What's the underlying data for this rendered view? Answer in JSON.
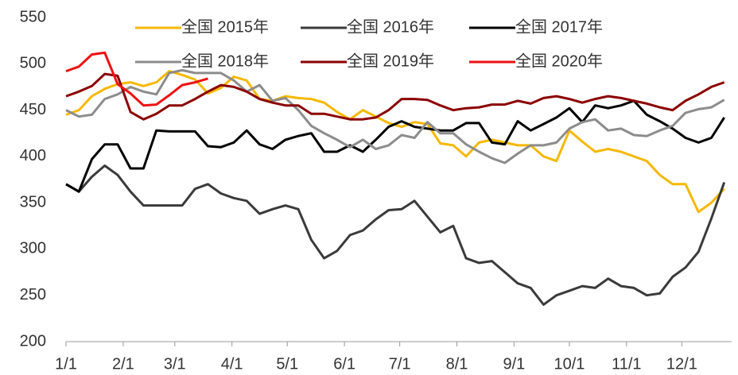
{
  "chart_data": {
    "type": "line",
    "x": [
      0,
      7,
      14,
      21,
      28,
      35,
      42,
      49,
      56,
      63,
      70,
      77,
      84,
      91,
      98,
      105,
      112,
      119,
      126,
      133,
      140,
      147,
      154,
      161,
      168,
      175,
      182,
      189,
      196,
      203,
      210,
      217,
      224,
      231,
      238,
      245,
      252,
      259,
      266,
      273,
      280,
      287,
      294,
      301,
      308,
      315,
      322,
      329,
      336,
      343,
      350,
      357
    ],
    "xlim": [
      0,
      361
    ],
    "xticks": [
      {
        "value": 0,
        "label": "1/1"
      },
      {
        "value": 31,
        "label": "2/1"
      },
      {
        "value": 59,
        "label": "3/1"
      },
      {
        "value": 90,
        "label": "4/1"
      },
      {
        "value": 120,
        "label": "5/1"
      },
      {
        "value": 151,
        "label": "6/1"
      },
      {
        "value": 181,
        "label": "7/1"
      },
      {
        "value": 212,
        "label": "8/1"
      },
      {
        "value": 243,
        "label": "9/1"
      },
      {
        "value": 273,
        "label": "10/1"
      },
      {
        "value": 304,
        "label": "11/1"
      },
      {
        "value": 334,
        "label": "12/1"
      }
    ],
    "ylim": [
      200,
      550
    ],
    "yticks": [
      200,
      250,
      300,
      350,
      400,
      450,
      500,
      550
    ],
    "legend": "top",
    "series": [
      {
        "name": "全国 2015年",
        "color": "#f5b800",
        "values": [
          445,
          450,
          465,
          473,
          478,
          480,
          476,
          480,
          492,
          488,
          483,
          468,
          474,
          486,
          482,
          462,
          460,
          465,
          463,
          462,
          458,
          448,
          440,
          450,
          443,
          436,
          432,
          437,
          435,
          414,
          412,
          400,
          415,
          418,
          415,
          412,
          412,
          400,
          395,
          428,
          416,
          405,
          408,
          405,
          400,
          395,
          380,
          370,
          370,
          340,
          350,
          365
        ]
      },
      {
        "name": "全国 2016年",
        "color": "#3a3a3a",
        "values": [
          370,
          362,
          378,
          390,
          380,
          362,
          347,
          347,
          347,
          347,
          365,
          370,
          360,
          355,
          352,
          338,
          343,
          347,
          343,
          310,
          290,
          298,
          315,
          320,
          332,
          342,
          343,
          352,
          335,
          318,
          325,
          290,
          285,
          287,
          275,
          263,
          258,
          240,
          250,
          255,
          260,
          258,
          268,
          260,
          258,
          250,
          252,
          270,
          280,
          297,
          333,
          372
        ]
      },
      {
        "name": "全国 2017年",
        "color": "#000000",
        "values": [
          370,
          362,
          397,
          413,
          413,
          387,
          387,
          428,
          427,
          427,
          427,
          411,
          410,
          415,
          428,
          413,
          408,
          418,
          422,
          425,
          405,
          405,
          412,
          405,
          418,
          432,
          438,
          432,
          430,
          428,
          428,
          436,
          436,
          415,
          413,
          438,
          428,
          435,
          442,
          452,
          437,
          455,
          452,
          455,
          460,
          445,
          438,
          430,
          420,
          415,
          420,
          442
        ]
      },
      {
        "name": "全国 2018年",
        "color": "#8c8c8c",
        "values": [
          450,
          443,
          445,
          462,
          467,
          475,
          470,
          467,
          490,
          493,
          490,
          490,
          490,
          482,
          470,
          477,
          460,
          463,
          450,
          433,
          425,
          418,
          410,
          418,
          408,
          412,
          423,
          420,
          437,
          425,
          425,
          413,
          405,
          398,
          393,
          403,
          412,
          412,
          415,
          430,
          437,
          440,
          428,
          430,
          423,
          422,
          428,
          433,
          447,
          451,
          453,
          461
        ]
      },
      {
        "name": "全国 2019年",
        "color": "#8b0000",
        "values": [
          465,
          470,
          476,
          489,
          487,
          448,
          440,
          446,
          455,
          455,
          462,
          470,
          477,
          475,
          470,
          462,
          458,
          455,
          455,
          446,
          446,
          443,
          440,
          440,
          442,
          450,
          462,
          462,
          461,
          455,
          450,
          452,
          453,
          456,
          456,
          460,
          457,
          463,
          465,
          462,
          458,
          462,
          465,
          463,
          460,
          457,
          453,
          450,
          460,
          467,
          475,
          480
        ]
      },
      {
        "name": "全国 2020年",
        "color": "#ee1111",
        "values": [
          492,
          497,
          510,
          512,
          478,
          468,
          455,
          456,
          466,
          477,
          480,
          484,
          null,
          null,
          null,
          null,
          null,
          null,
          null,
          null,
          null,
          null,
          null,
          null,
          null,
          null,
          null,
          null,
          null,
          null,
          null,
          null,
          null,
          null,
          null,
          null,
          null,
          null,
          null,
          null,
          null,
          null,
          null,
          null,
          null,
          null,
          null,
          null,
          null,
          null,
          null,
          null
        ]
      }
    ]
  }
}
